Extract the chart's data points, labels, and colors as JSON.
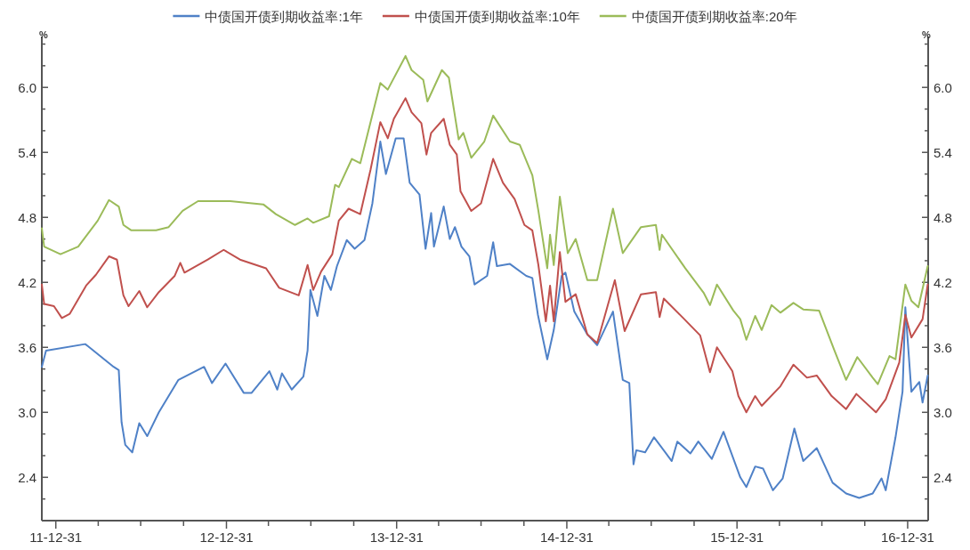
{
  "chart_data": {
    "type": "line",
    "ylabel": "%",
    "y2label": "%",
    "legend": "top",
    "xlim": [
      "2011-12-01",
      "2017-02-13"
    ],
    "xticks": [
      {
        "value": "2011-12-31",
        "label": "11-12-31"
      },
      {
        "value": "2012-03-31",
        "label": null
      },
      {
        "value": "2012-06-30",
        "label": null
      },
      {
        "value": "2012-09-30",
        "label": null
      },
      {
        "value": "2012-12-31",
        "label": "12-12-31"
      },
      {
        "value": "2013-03-31",
        "label": null
      },
      {
        "value": "2013-06-30",
        "label": null
      },
      {
        "value": "2013-09-30",
        "label": null
      },
      {
        "value": "2013-12-31",
        "label": "13-12-31"
      },
      {
        "value": "2014-03-31",
        "label": null
      },
      {
        "value": "2014-06-30",
        "label": null
      },
      {
        "value": "2014-09-30",
        "label": null
      },
      {
        "value": "2014-12-31",
        "label": "14-12-31"
      },
      {
        "value": "2015-03-31",
        "label": null
      },
      {
        "value": "2015-06-30",
        "label": null
      },
      {
        "value": "2015-09-30",
        "label": null
      },
      {
        "value": "2015-12-31",
        "label": "15-12-31"
      },
      {
        "value": "2016-03-31",
        "label": null
      },
      {
        "value": "2016-06-30",
        "label": null
      },
      {
        "value": "2016-09-30",
        "label": null
      },
      {
        "value": "2016-12-31",
        "label": "16-12-31"
      }
    ],
    "ylim": [
      2.0,
      6.47
    ],
    "yticks": [
      {
        "value": 2.2,
        "label": null
      },
      2.4,
      {
        "value": 2.6,
        "label": null
      },
      {
        "value": 2.8,
        "label": null
      },
      {
        "value": 3.0,
        "label": "3.0"
      },
      {
        "value": 3.2,
        "label": null
      },
      {
        "value": 3.4,
        "label": null
      },
      3.6,
      {
        "value": 3.8,
        "label": null
      },
      {
        "value": 4.0,
        "label": null
      },
      4.2,
      {
        "value": 4.4,
        "label": null
      },
      {
        "value": 4.6,
        "label": null
      },
      4.8,
      {
        "value": 5.0,
        "label": null
      },
      {
        "value": 5.2,
        "label": null
      },
      5.4,
      {
        "value": 5.6,
        "label": null
      },
      {
        "value": 5.8,
        "label": null
      },
      {
        "value": 6.0,
        "label": "6.0"
      },
      {
        "value": 6.2,
        "label": null
      },
      {
        "value": 6.4,
        "label": null
      }
    ],
    "y2lim": [
      2.0,
      6.47
    ],
    "y2ticks": [
      {
        "value": 2.2,
        "label": null
      },
      2.4,
      {
        "value": 2.6,
        "label": null
      },
      {
        "value": 2.8,
        "label": null
      },
      {
        "value": 3.0,
        "label": "3.0"
      },
      {
        "value": 3.2,
        "label": null
      },
      {
        "value": 3.4,
        "label": null
      },
      3.6,
      {
        "value": 3.8,
        "label": null
      },
      {
        "value": 4.0,
        "label": null
      },
      4.2,
      {
        "value": 4.4,
        "label": null
      },
      {
        "value": 4.6,
        "label": null
      },
      4.8,
      {
        "value": 5.0,
        "label": null
      },
      {
        "value": 5.2,
        "label": null
      },
      5.4,
      {
        "value": 5.6,
        "label": null
      },
      {
        "value": 5.8,
        "label": null
      },
      {
        "value": 6.0,
        "label": "6.0"
      },
      {
        "value": 6.2,
        "label": null
      },
      {
        "value": 6.4,
        "label": null
      }
    ],
    "series": [
      {
        "name": "中债国开债到期收益率:1年",
        "color": "#4f81c7",
        "x": [
          "2011-12-01",
          "2011-12-10",
          "2012-03-03",
          "2012-03-09",
          "2012-05-03",
          "2012-05-14",
          "2012-05-20",
          "2012-05-28",
          "2012-06-12",
          "2012-06-27",
          "2012-07-14",
          "2012-08-08",
          "2012-09-19",
          "2012-11-13",
          "2012-11-30",
          "2012-12-29",
          "2013-02-06",
          "2013-02-23",
          "2013-04-02",
          "2013-04-19",
          "2013-04-29",
          "2013-05-20",
          "2013-06-14",
          "2013-06-23",
          "2013-06-29",
          "2013-07-14",
          "2013-07-29",
          "2013-08-12",
          "2013-08-25",
          "2013-09-15",
          "2013-10-02",
          "2013-10-23",
          "2013-11-09",
          "2013-11-26",
          "2013-12-08",
          "2013-12-29",
          "2014-01-15",
          "2014-01-28",
          "2014-02-18",
          "2014-03-03",
          "2014-03-15",
          "2014-03-21",
          "2014-04-11",
          "2014-04-24",
          "2014-05-05",
          "2014-05-19",
          "2014-06-05",
          "2014-06-16",
          "2014-07-13",
          "2014-07-26",
          "2014-08-03",
          "2014-08-31",
          "2014-10-05",
          "2014-10-18",
          "2014-10-30",
          "2014-11-19",
          "2014-12-03",
          "2014-12-20",
          "2014-12-28",
          "2015-01-16",
          "2015-02-13",
          "2015-03-06",
          "2015-04-09",
          "2015-04-30",
          "2015-05-14",
          "2015-05-23",
          "2015-05-29",
          "2015-06-17",
          "2015-07-06",
          "2015-08-13",
          "2015-08-25",
          "2015-09-22",
          "2015-10-09",
          "2015-11-07",
          "2015-12-02",
          "2016-01-07",
          "2016-01-20",
          "2016-02-08",
          "2016-02-25",
          "2016-03-17",
          "2016-04-07",
          "2016-05-02",
          "2016-05-21",
          "2016-06-19",
          "2016-07-23",
          "2016-08-21",
          "2016-09-18",
          "2016-10-17",
          "2016-11-05",
          "2016-11-14",
          "2016-12-05",
          "2016-12-20",
          "2016-12-26",
          "2017-01-08",
          "2017-01-25",
          "2017-02-01",
          "2017-02-12"
        ],
        "values": [
          3.42,
          3.57,
          3.63,
          3.61,
          3.42,
          3.39,
          2.91,
          2.7,
          2.63,
          2.9,
          2.78,
          3.0,
          3.3,
          3.42,
          3.27,
          3.45,
          3.18,
          3.18,
          3.38,
          3.21,
          3.36,
          3.21,
          3.33,
          3.57,
          4.13,
          3.89,
          4.26,
          4.13,
          4.35,
          4.59,
          4.51,
          4.59,
          4.93,
          5.5,
          5.2,
          5.53,
          5.53,
          5.12,
          5.01,
          4.51,
          4.84,
          4.53,
          4.9,
          4.6,
          4.71,
          4.53,
          4.44,
          4.18,
          4.26,
          4.57,
          4.35,
          4.37,
          4.26,
          4.24,
          3.9,
          3.49,
          3.76,
          4.26,
          4.29,
          3.93,
          3.72,
          3.62,
          3.93,
          3.3,
          3.27,
          2.52,
          2.65,
          2.63,
          2.77,
          2.55,
          2.73,
          2.62,
          2.73,
          2.57,
          2.82,
          2.4,
          2.31,
          2.5,
          2.48,
          2.28,
          2.39,
          2.85,
          2.55,
          2.67,
          2.35,
          2.25,
          2.21,
          2.25,
          2.39,
          2.28,
          2.77,
          3.19,
          3.97,
          3.19,
          3.28,
          3.09,
          3.34
        ]
      },
      {
        "name": "中债国开债到期收益率:10年",
        "color": "#c0504d",
        "x": [
          "2011-12-01",
          "2011-12-06",
          "2011-12-27",
          "2012-01-13",
          "2012-01-30",
          "2012-03-05",
          "2012-03-26",
          "2012-04-23",
          "2012-05-10",
          "2012-05-24",
          "2012-06-04",
          "2012-06-27",
          "2012-07-14",
          "2012-08-08",
          "2012-09-11",
          "2012-09-23",
          "2012-10-02",
          "2012-11-21",
          "2012-12-25",
          "2013-01-29",
          "2013-03-26",
          "2013-04-23",
          "2013-06-04",
          "2013-06-23",
          "2013-07-05",
          "2013-07-22",
          "2013-08-15",
          "2013-08-29",
          "2013-09-19",
          "2013-10-14",
          "2013-11-05",
          "2013-11-26",
          "2013-12-12",
          "2013-12-25",
          "2014-01-19",
          "2014-02-01",
          "2014-02-22",
          "2014-03-05",
          "2014-03-15",
          "2014-04-11",
          "2014-04-24",
          "2014-05-09",
          "2014-05-17",
          "2014-06-09",
          "2014-06-30",
          "2014-07-26",
          "2014-08-16",
          "2014-09-10",
          "2014-10-01",
          "2014-10-18",
          "2014-10-31",
          "2014-11-16",
          "2014-11-25",
          "2014-12-03",
          "2014-12-16",
          "2014-12-28",
          "2015-01-19",
          "2015-02-13",
          "2015-03-06",
          "2015-04-13",
          "2015-05-04",
          "2015-06-08",
          "2015-07-10",
          "2015-07-18",
          "2015-07-27",
          "2015-09-09",
          "2015-10-13",
          "2015-11-03",
          "2015-11-18",
          "2015-12-21",
          "2016-01-03",
          "2016-01-20",
          "2016-02-08",
          "2016-02-22",
          "2016-04-02",
          "2016-04-30",
          "2016-05-29",
          "2016-06-19",
          "2016-07-21",
          "2016-08-21",
          "2016-09-12",
          "2016-10-24",
          "2016-11-14",
          "2016-12-13",
          "2016-12-26",
          "2017-01-08",
          "2017-02-01",
          "2017-02-12"
        ],
        "values": [
          4.18,
          4.0,
          3.98,
          3.87,
          3.91,
          4.17,
          4.27,
          4.44,
          4.41,
          4.08,
          3.98,
          4.12,
          3.97,
          4.11,
          4.26,
          4.38,
          4.29,
          4.41,
          4.5,
          4.41,
          4.33,
          4.15,
          4.08,
          4.36,
          4.13,
          4.3,
          4.46,
          4.77,
          4.88,
          4.83,
          5.24,
          5.68,
          5.53,
          5.71,
          5.9,
          5.77,
          5.67,
          5.38,
          5.58,
          5.71,
          5.47,
          5.38,
          5.04,
          4.86,
          4.93,
          5.34,
          5.12,
          4.97,
          4.73,
          4.68,
          4.36,
          3.84,
          4.17,
          3.84,
          4.48,
          4.02,
          4.09,
          3.72,
          3.64,
          4.22,
          3.75,
          4.09,
          4.11,
          3.88,
          4.05,
          3.86,
          3.71,
          3.37,
          3.6,
          3.38,
          3.15,
          3.0,
          3.15,
          3.06,
          3.24,
          3.44,
          3.32,
          3.34,
          3.15,
          3.03,
          3.17,
          3.0,
          3.12,
          3.46,
          3.9,
          3.69,
          3.86,
          4.18
        ]
      },
      {
        "name": "中债国开债到期收益率:20年",
        "color": "#9bbb59",
        "x": [
          "2011-12-01",
          "2011-12-06",
          "2012-01-10",
          "2012-02-17",
          "2012-03-30",
          "2012-04-23",
          "2012-05-14",
          "2012-05-24",
          "2012-06-10",
          "2012-08-02",
          "2012-08-29",
          "2012-09-28",
          "2012-10-31",
          "2013-01-08",
          "2013-03-20",
          "2013-04-16",
          "2013-05-27",
          "2013-06-23",
          "2013-07-05",
          "2013-08-08",
          "2013-08-21",
          "2013-08-29",
          "2013-09-26",
          "2013-10-14",
          "2013-11-26",
          "2013-12-12",
          "2014-01-19",
          "2014-02-01",
          "2014-02-26",
          "2014-03-07",
          "2014-04-07",
          "2014-04-22",
          "2014-05-13",
          "2014-05-23",
          "2014-06-09",
          "2014-07-07",
          "2014-07-26",
          "2014-08-31",
          "2014-09-21",
          "2014-10-18",
          "2014-10-31",
          "2014-11-19",
          "2014-11-25",
          "2014-12-03",
          "2014-12-16",
          "2015-01-02",
          "2015-01-19",
          "2015-02-13",
          "2015-03-06",
          "2015-04-09",
          "2015-04-30",
          "2015-06-08",
          "2015-07-10",
          "2015-07-18",
          "2015-07-23",
          "2015-09-11",
          "2015-10-21",
          "2015-11-03",
          "2015-11-18",
          "2015-12-23",
          "2016-01-07",
          "2016-01-20",
          "2016-02-08",
          "2016-02-22",
          "2016-03-14",
          "2016-04-02",
          "2016-04-30",
          "2016-05-21",
          "2016-06-24",
          "2016-07-27",
          "2016-08-21",
          "2016-09-14",
          "2016-10-17",
          "2016-10-28",
          "2016-11-22",
          "2016-12-05",
          "2016-12-26",
          "2017-01-08",
          "2017-01-23",
          "2017-02-12"
        ],
        "values": [
          4.7,
          4.53,
          4.46,
          4.53,
          4.77,
          4.96,
          4.9,
          4.73,
          4.68,
          4.68,
          4.71,
          4.86,
          4.95,
          4.95,
          4.92,
          4.83,
          4.73,
          4.79,
          4.75,
          4.81,
          5.1,
          5.08,
          5.34,
          5.3,
          6.04,
          5.98,
          6.29,
          6.16,
          6.07,
          5.87,
          6.16,
          6.09,
          5.52,
          5.58,
          5.35,
          5.5,
          5.74,
          5.5,
          5.47,
          5.19,
          4.86,
          4.33,
          4.64,
          4.36,
          4.99,
          4.47,
          4.6,
          4.22,
          4.22,
          4.88,
          4.47,
          4.71,
          4.73,
          4.5,
          4.64,
          4.33,
          4.1,
          3.99,
          4.18,
          3.94,
          3.86,
          3.67,
          3.89,
          3.76,
          3.99,
          3.92,
          4.01,
          3.95,
          3.94,
          3.57,
          3.3,
          3.51,
          3.32,
          3.26,
          3.52,
          3.49,
          4.18,
          4.03,
          3.97,
          4.35
        ]
      }
    ]
  }
}
